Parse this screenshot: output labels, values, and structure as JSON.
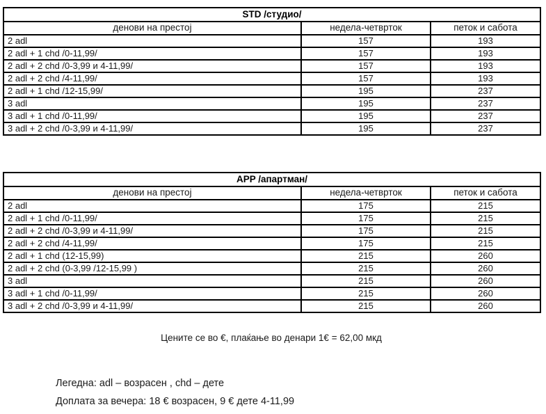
{
  "colors": {
    "background": "#ffffff",
    "border": "#000000",
    "text": "#1a1a1a"
  },
  "tables": [
    {
      "title": "STD /студио/",
      "headers": [
        "денови на престој",
        "недела-четврток",
        "петок и сабота"
      ],
      "rows": [
        {
          "occupancy": "2 adl",
          "midweek": "157",
          "weekend": "193"
        },
        {
          "occupancy": "2 adl + 1 chd /0-11,99/",
          "midweek": "157",
          "weekend": "193"
        },
        {
          "occupancy": "2 adl + 2 chd /0-3,99 и 4-11,99/",
          "midweek": "157",
          "weekend": "193"
        },
        {
          "occupancy": "2 adl + 2 chd /4-11,99/",
          "midweek": "157",
          "weekend": "193"
        },
        {
          "occupancy": "2 adl + 1 chd /12-15,99/",
          "midweek": "195",
          "weekend": "237"
        },
        {
          "occupancy": "3 adl",
          "midweek": "195",
          "weekend": "237"
        },
        {
          "occupancy": "3 adl + 1 chd /0-11,99/",
          "midweek": "195",
          "weekend": "237"
        },
        {
          "occupancy": "3 adl + 2 chd /0-3,99 и 4-11,99/",
          "midweek": "195",
          "weekend": "237"
        }
      ]
    },
    {
      "title": "APP /апартман/",
      "headers": [
        "денови на престој",
        "недела-четврток",
        "петок и сабота"
      ],
      "rows": [
        {
          "occupancy": "2 adl",
          "midweek": "175",
          "weekend": "215"
        },
        {
          "occupancy": "2 adl + 1 chd /0-11,99/",
          "midweek": "175",
          "weekend": "215"
        },
        {
          "occupancy": "2 adl + 2 chd /0-3,99 и 4-11,99/",
          "midweek": "175",
          "weekend": "215"
        },
        {
          "occupancy": "2 adl + 2 chd /4-11,99/",
          "midweek": "175",
          "weekend": "215"
        },
        {
          "occupancy": "2 adl + 1 chd (12-15,99)",
          "midweek": "215",
          "weekend": "260"
        },
        {
          "occupancy": "2 adl + 2 chd (0-3,99 /12-15,99 )",
          "midweek": "215",
          "weekend": "260"
        },
        {
          "occupancy": "3 adl",
          "midweek": "215",
          "weekend": "260"
        },
        {
          "occupancy": "3 adl + 1 chd /0-11,99/",
          "midweek": "215",
          "weekend": "260"
        },
        {
          "occupancy": "3 adl + 2 chd /0-3,99 и 4-11,99/",
          "midweek": "215",
          "weekend": "260"
        }
      ]
    }
  ],
  "currency_note": "Цените се во €, плаќање во денари 1€ = 62,00 мкд",
  "legend": {
    "line1": "Легедна: adl – возрасен , chd – дете",
    "line2": "Доплата за вечера: 18 € возрасен, 9 € дете 4-11,99"
  }
}
